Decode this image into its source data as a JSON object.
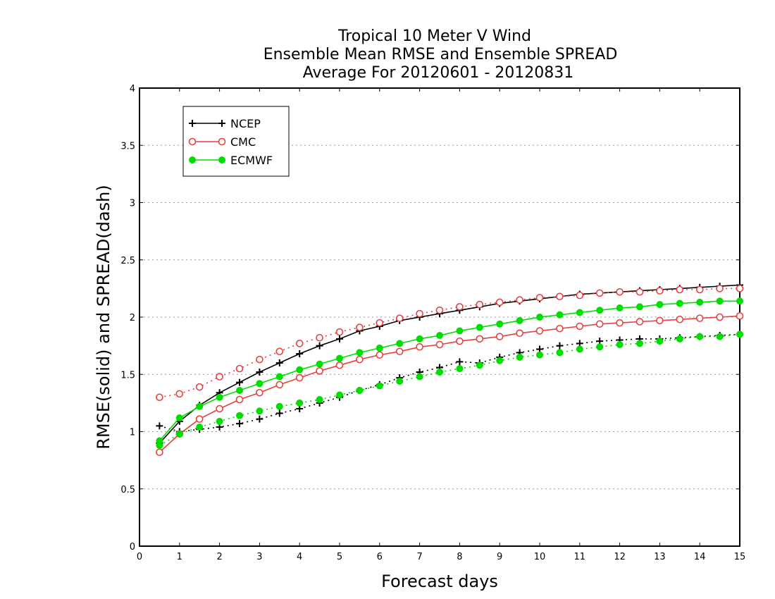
{
  "chart_data": {
    "type": "line",
    "title": [
      "Tropical 10 Meter V Wind",
      "Ensemble Mean RMSE and Ensemble SPREAD",
      "Average For 20120601 - 20120831"
    ],
    "xlabel": "Forecast days",
    "ylabel": "RMSE(solid) and SPREAD(dash)",
    "xlim": [
      0,
      15
    ],
    "ylim": [
      0,
      4
    ],
    "xticks": [
      "0",
      "1",
      "2",
      "3",
      "4",
      "5",
      "6",
      "7",
      "8",
      "9",
      "10",
      "11",
      "12",
      "13",
      "14",
      "15"
    ],
    "yticks": [
      "0",
      "0.5",
      "1",
      "1.5",
      "2",
      "2.5",
      "3",
      "3.5",
      "4"
    ],
    "grid": "horizontal-dotted",
    "legend_position": "top-left",
    "x": [
      0.5,
      1,
      1.5,
      2,
      2.5,
      3,
      3.5,
      4,
      4.5,
      5,
      5.5,
      6,
      6.5,
      7,
      7.5,
      8,
      8.5,
      9,
      9.5,
      10,
      10.5,
      11,
      11.5,
      12,
      12.5,
      13,
      13.5,
      14,
      14.5,
      15
    ],
    "series": [
      {
        "name": "NCEP",
        "color": "#000000",
        "marker": "plus",
        "rmse": [
          0.9,
          1.09,
          1.23,
          1.34,
          1.43,
          1.52,
          1.6,
          1.68,
          1.75,
          1.81,
          1.88,
          1.92,
          1.97,
          2.0,
          2.03,
          2.06,
          2.09,
          2.12,
          2.14,
          2.16,
          2.18,
          2.2,
          2.21,
          2.22,
          2.23,
          2.24,
          2.25,
          2.26,
          2.27,
          2.28
        ],
        "spread": [
          1.05,
          1.0,
          1.02,
          1.04,
          1.07,
          1.11,
          1.16,
          1.2,
          1.25,
          1.3,
          1.36,
          1.41,
          1.47,
          1.52,
          1.56,
          1.61,
          1.6,
          1.65,
          1.69,
          1.72,
          1.75,
          1.77,
          1.79,
          1.8,
          1.81,
          1.81,
          1.82,
          1.83,
          1.84,
          1.85
        ]
      },
      {
        "name": "CMC",
        "color": "#e84040",
        "marker": "open-circle",
        "rmse": [
          0.82,
          0.98,
          1.11,
          1.2,
          1.28,
          1.34,
          1.41,
          1.47,
          1.53,
          1.58,
          1.63,
          1.67,
          1.7,
          1.74,
          1.76,
          1.79,
          1.81,
          1.83,
          1.86,
          1.88,
          1.9,
          1.92,
          1.94,
          1.95,
          1.96,
          1.97,
          1.98,
          1.99,
          2.0,
          2.01
        ],
        "spread": [
          1.3,
          1.33,
          1.39,
          1.48,
          1.55,
          1.63,
          1.7,
          1.77,
          1.82,
          1.87,
          1.91,
          1.95,
          1.99,
          2.03,
          2.06,
          2.09,
          2.11,
          2.13,
          2.15,
          2.17,
          2.18,
          2.19,
          2.21,
          2.22,
          2.22,
          2.23,
          2.24,
          2.24,
          2.25,
          2.25
        ]
      },
      {
        "name": "ECMWF",
        "color": "#00dd00",
        "marker": "filled-circle",
        "rmse": [
          0.92,
          1.12,
          1.22,
          1.3,
          1.36,
          1.42,
          1.48,
          1.54,
          1.59,
          1.64,
          1.69,
          1.73,
          1.77,
          1.81,
          1.84,
          1.88,
          1.91,
          1.94,
          1.97,
          2.0,
          2.02,
          2.04,
          2.06,
          2.08,
          2.09,
          2.11,
          2.12,
          2.13,
          2.14,
          2.14
        ],
        "spread": [
          0.88,
          0.98,
          1.04,
          1.09,
          1.14,
          1.18,
          1.22,
          1.25,
          1.28,
          1.32,
          1.36,
          1.4,
          1.44,
          1.48,
          1.52,
          1.55,
          1.58,
          1.62,
          1.65,
          1.67,
          1.69,
          1.72,
          1.74,
          1.76,
          1.77,
          1.79,
          1.81,
          1.83,
          1.83,
          1.85
        ]
      }
    ]
  }
}
